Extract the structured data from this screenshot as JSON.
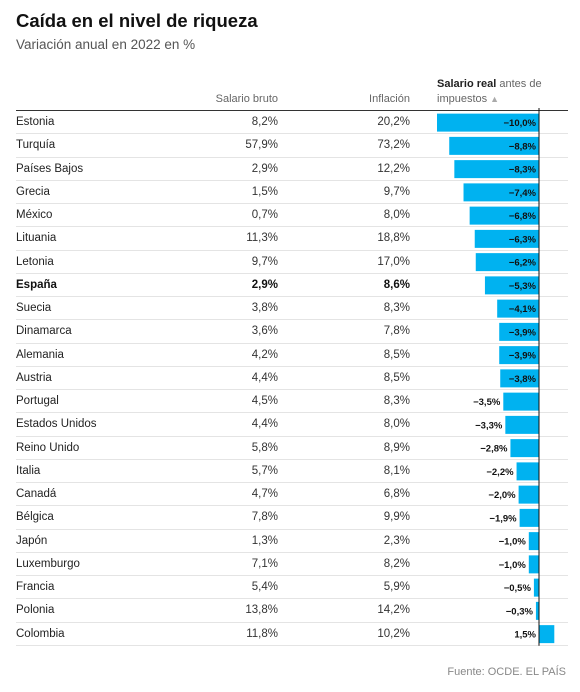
{
  "title": "Caída en el nivel de riqueza",
  "subtitle": "Variación anual en 2022 en %",
  "columns": {
    "bruto": "Salario bruto",
    "inflacion": "Inflación",
    "real_bold": "Salario real",
    "real_rest": " antes de impuestos",
    "sort_icon": "▲"
  },
  "source": "Fuente: OCDE. EL PAÍS",
  "colors": {
    "bar": "#00b2f0",
    "axis": "#111111"
  },
  "rows": [
    {
      "country": "Estonia",
      "bruto": "8,2%",
      "inflacion": "20,2%",
      "real": "−10,0%",
      "bold": false
    },
    {
      "country": "Turquía",
      "bruto": "57,9%",
      "inflacion": "73,2%",
      "real": "−8,8%",
      "bold": false
    },
    {
      "country": "Países Bajos",
      "bruto": "2,9%",
      "inflacion": "12,2%",
      "real": "−8,3%",
      "bold": false
    },
    {
      "country": "Grecia",
      "bruto": "1,5%",
      "inflacion": "9,7%",
      "real": "−7,4%",
      "bold": false
    },
    {
      "country": "México",
      "bruto": "0,7%",
      "inflacion": "8,0%",
      "real": "−6,8%",
      "bold": false
    },
    {
      "country": "Lituania",
      "bruto": "11,3%",
      "inflacion": "18,8%",
      "real": "−6,3%",
      "bold": false
    },
    {
      "country": "Letonia",
      "bruto": "9,7%",
      "inflacion": "17,0%",
      "real": "−6,2%",
      "bold": false
    },
    {
      "country": "España",
      "bruto": "2,9%",
      "inflacion": "8,6%",
      "real": "−5,3%",
      "bold": true
    },
    {
      "country": "Suecia",
      "bruto": "3,8%",
      "inflacion": "8,3%",
      "real": "−4,1%",
      "bold": false
    },
    {
      "country": "Dinamarca",
      "bruto": "3,6%",
      "inflacion": "7,8%",
      "real": "−3,9%",
      "bold": false
    },
    {
      "country": "Alemania",
      "bruto": "4,2%",
      "inflacion": "8,5%",
      "real": "−3,9%",
      "bold": false
    },
    {
      "country": "Austria",
      "bruto": "4,4%",
      "inflacion": "8,5%",
      "real": "−3,8%",
      "bold": false
    },
    {
      "country": "Portugal",
      "bruto": "4,5%",
      "inflacion": "8,3%",
      "real": "−3,5%",
      "bold": false
    },
    {
      "country": "Estados Unidos",
      "bruto": "4,4%",
      "inflacion": "8,0%",
      "real": "−3,3%",
      "bold": false
    },
    {
      "country": "Reino Unido",
      "bruto": "5,8%",
      "inflacion": "8,9%",
      "real": "−2,8%",
      "bold": false
    },
    {
      "country": "Italia",
      "bruto": "5,7%",
      "inflacion": "8,1%",
      "real": "−2,2%",
      "bold": false
    },
    {
      "country": "Canadá",
      "bruto": "4,7%",
      "inflacion": "6,8%",
      "real": "−2,0%",
      "bold": false
    },
    {
      "country": "Bélgica",
      "bruto": "7,8%",
      "inflacion": "9,9%",
      "real": "−1,9%",
      "bold": false
    },
    {
      "country": "Japón",
      "bruto": "1,3%",
      "inflacion": "2,3%",
      "real": "−1,0%",
      "bold": false
    },
    {
      "country": "Luxemburgo",
      "bruto": "7,1%",
      "inflacion": "8,2%",
      "real": "−1,0%",
      "bold": false
    },
    {
      "country": "Francia",
      "bruto": "5,4%",
      "inflacion": "5,9%",
      "real": "−0,5%",
      "bold": false
    },
    {
      "country": "Polonia",
      "bruto": "13,8%",
      "inflacion": "14,2%",
      "real": "−0,3%",
      "bold": false
    },
    {
      "country": "Colombia",
      "bruto": "11,8%",
      "inflacion": "10,2%",
      "real": "1,5%",
      "bold": false
    }
  ],
  "chart_data": {
    "type": "bar",
    "categories": [
      "Estonia",
      "Turquía",
      "Países Bajos",
      "Grecia",
      "México",
      "Lituania",
      "Letonia",
      "España",
      "Suecia",
      "Dinamarca",
      "Alemania",
      "Austria",
      "Portugal",
      "Estados Unidos",
      "Reino Unido",
      "Italia",
      "Canadá",
      "Bélgica",
      "Japón",
      "Luxemburgo",
      "Francia",
      "Polonia",
      "Colombia"
    ],
    "values": [
      -10.0,
      -8.8,
      -8.3,
      -7.4,
      -6.8,
      -6.3,
      -6.2,
      -5.3,
      -4.1,
      -3.9,
      -3.9,
      -3.8,
      -3.5,
      -3.3,
      -2.8,
      -2.2,
      -2.0,
      -1.9,
      -1.0,
      -1.0,
      -0.5,
      -0.3,
      1.5
    ],
    "labels": [
      "−10,0%",
      "−8,8%",
      "−8,3%",
      "−7,4%",
      "−6,8%",
      "−6,3%",
      "−6,2%",
      "−5,3%",
      "−4,1%",
      "−3,9%",
      "−3,9%",
      "−3,8%",
      "−3,5%",
      "−3,3%",
      "−2,8%",
      "−2,2%",
      "−2,0%",
      "−1,9%",
      "−1,0%",
      "−1,0%",
      "−0,5%",
      "−0,3%",
      "1,5%"
    ],
    "orientation": "horizontal",
    "xlim": [
      -10.0,
      1.5
    ],
    "series_label": "Salario real antes de impuestos",
    "grid": false
  }
}
